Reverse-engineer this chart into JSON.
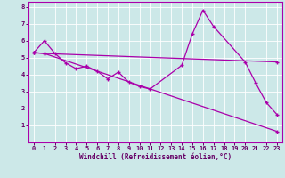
{
  "background_color": "#cce8e8",
  "line_color": "#aa00aa",
  "grid_color": "#b0d8d8",
  "xlabel": "Windchill (Refroidissement éolien,°C)",
  "xlabel_color": "#660066",
  "tick_color": "#660066",
  "xlim": [
    -0.5,
    23.5
  ],
  "ylim": [
    0,
    8.3
  ],
  "xticks": [
    0,
    1,
    2,
    3,
    4,
    5,
    6,
    7,
    8,
    9,
    10,
    11,
    12,
    13,
    14,
    15,
    16,
    17,
    18,
    19,
    20,
    21,
    22,
    23
  ],
  "yticks": [
    1,
    2,
    3,
    4,
    5,
    6,
    7,
    8
  ],
  "line1_x": [
    0,
    1,
    2,
    3,
    4,
    5,
    6,
    7,
    8,
    9,
    10,
    11,
    14,
    15,
    16,
    17,
    20,
    21,
    22,
    23
  ],
  "line1_y": [
    5.3,
    6.0,
    5.25,
    4.7,
    4.35,
    4.5,
    4.2,
    3.75,
    4.15,
    3.55,
    3.3,
    3.15,
    4.55,
    6.4,
    7.8,
    6.85,
    4.75,
    3.5,
    2.35,
    1.65
  ],
  "line2_x": [
    0,
    1,
    23
  ],
  "line2_y": [
    5.3,
    5.25,
    0.65
  ],
  "line3_x": [
    0,
    1,
    23
  ],
  "line3_y": [
    5.3,
    5.25,
    4.75
  ]
}
